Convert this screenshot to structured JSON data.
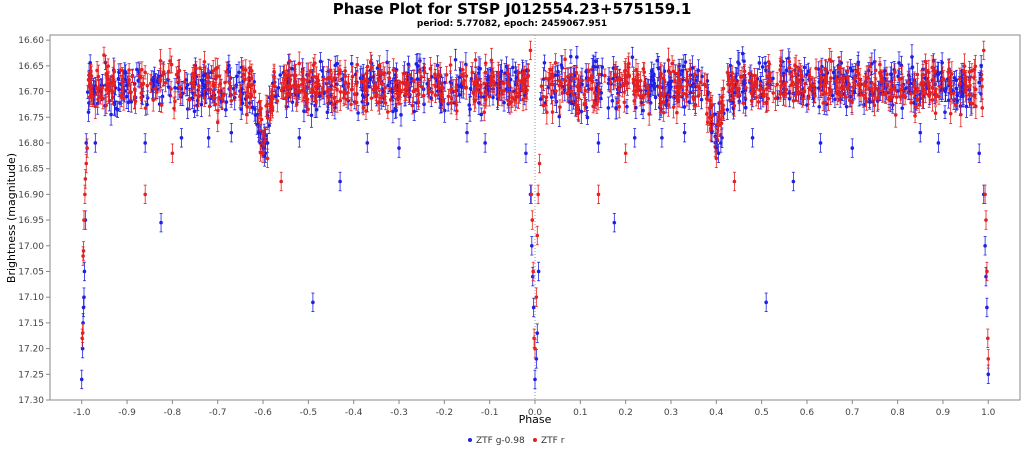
{
  "chart_data": {
    "type": "scatter",
    "title": "Phase Plot for STSP J012554.23+575159.1",
    "subtitle": "period: 5.77082, epoch: 2459067.951",
    "xlabel": "Phase",
    "ylabel": "Brightness (magnitude)",
    "xlim": [
      -1.07,
      1.07
    ],
    "ylim": [
      17.3,
      16.59
    ],
    "y_inverted": true,
    "grid": false,
    "legend_position": "bottom-center",
    "xticks": [
      "-1.0",
      "-0.9",
      "-0.8",
      "-0.7",
      "-0.6",
      "-0.5",
      "-0.4",
      "-0.3",
      "-0.2",
      "-0.1",
      "0.0",
      "0.1",
      "0.2",
      "0.3",
      "0.4",
      "0.5",
      "0.6",
      "0.7",
      "0.8",
      "0.9",
      "1.0"
    ],
    "yticks": [
      "16.60",
      "16.65",
      "16.70",
      "16.75",
      "16.80",
      "16.85",
      "16.90",
      "16.95",
      "17.00",
      "17.05",
      "17.10",
      "17.15",
      "17.20",
      "17.25",
      "17.30"
    ],
    "baseline_magnitude": 16.69,
    "series": [
      {
        "name": "ZTF g-0.98",
        "color": "#1f1fe6",
        "points": [
          {
            "x": -1.0,
            "y": 17.26
          },
          {
            "x": -0.998,
            "y": 17.2
          },
          {
            "x": -0.997,
            "y": 17.15
          },
          {
            "x": -0.996,
            "y": 17.12
          },
          {
            "x": -0.995,
            "y": 17.1
          },
          {
            "x": -0.994,
            "y": 17.05
          },
          {
            "x": -0.992,
            "y": 16.95
          },
          {
            "x": -0.99,
            "y": 16.8
          },
          {
            "x": -0.985,
            "y": 16.74
          },
          {
            "x": -0.97,
            "y": 16.8
          },
          {
            "x": -0.86,
            "y": 16.8
          },
          {
            "x": -0.825,
            "y": 16.955
          },
          {
            "x": -0.78,
            "y": 16.79
          },
          {
            "x": -0.72,
            "y": 16.79
          },
          {
            "x": -0.67,
            "y": 16.78
          },
          {
            "x": -0.61,
            "y": 16.78
          },
          {
            "x": -0.6,
            "y": 16.81
          },
          {
            "x": -0.595,
            "y": 16.82
          },
          {
            "x": -0.59,
            "y": 16.8
          },
          {
            "x": -0.52,
            "y": 16.79
          },
          {
            "x": -0.49,
            "y": 17.11
          },
          {
            "x": -0.43,
            "y": 16.875
          },
          {
            "x": -0.37,
            "y": 16.8
          },
          {
            "x": -0.3,
            "y": 16.81
          },
          {
            "x": -0.15,
            "y": 16.78
          },
          {
            "x": -0.11,
            "y": 16.8
          },
          {
            "x": -0.02,
            "y": 16.82
          },
          {
            "x": -0.01,
            "y": 16.9
          },
          {
            "x": -0.007,
            "y": 17.0
          },
          {
            "x": -0.005,
            "y": 17.06
          },
          {
            "x": -0.003,
            "y": 17.12
          },
          {
            "x": 0.0,
            "y": 17.26
          },
          {
            "x": 0.003,
            "y": 17.22
          },
          {
            "x": 0.005,
            "y": 17.17
          },
          {
            "x": 0.008,
            "y": 17.05
          },
          {
            "x": 0.14,
            "y": 16.8
          },
          {
            "x": 0.175,
            "y": 16.955
          },
          {
            "x": 0.22,
            "y": 16.79
          },
          {
            "x": 0.28,
            "y": 16.79
          },
          {
            "x": 0.33,
            "y": 16.78
          },
          {
            "x": 0.39,
            "y": 16.78
          },
          {
            "x": 0.4,
            "y": 16.81
          },
          {
            "x": 0.405,
            "y": 16.82
          },
          {
            "x": 0.41,
            "y": 16.8
          },
          {
            "x": 0.48,
            "y": 16.79
          },
          {
            "x": 0.51,
            "y": 17.11
          },
          {
            "x": 0.57,
            "y": 16.875
          },
          {
            "x": 0.63,
            "y": 16.8
          },
          {
            "x": 0.7,
            "y": 16.81
          },
          {
            "x": 0.85,
            "y": 16.78
          },
          {
            "x": 0.89,
            "y": 16.8
          },
          {
            "x": 0.98,
            "y": 16.82
          },
          {
            "x": 0.99,
            "y": 16.9
          },
          {
            "x": 0.993,
            "y": 17.0
          },
          {
            "x": 0.995,
            "y": 17.06
          },
          {
            "x": 0.997,
            "y": 17.12
          },
          {
            "x": 1.0,
            "y": 17.25
          }
        ]
      },
      {
        "name": "ZTF r",
        "color": "#e62020",
        "points": [
          {
            "x": -0.999,
            "y": 17.18
          },
          {
            "x": -0.998,
            "y": 17.17
          },
          {
            "x": -0.997,
            "y": 17.02
          },
          {
            "x": -0.996,
            "y": 17.01
          },
          {
            "x": -0.995,
            "y": 16.95
          },
          {
            "x": -0.993,
            "y": 16.9
          },
          {
            "x": -0.992,
            "y": 16.87
          },
          {
            "x": -0.99,
            "y": 16.84
          },
          {
            "x": -0.988,
            "y": 16.81
          },
          {
            "x": -0.86,
            "y": 16.9
          },
          {
            "x": -0.8,
            "y": 16.82
          },
          {
            "x": -0.7,
            "y": 16.76
          },
          {
            "x": -0.6,
            "y": 16.82
          },
          {
            "x": -0.59,
            "y": 16.83
          },
          {
            "x": -0.56,
            "y": 16.875
          },
          {
            "x": -0.01,
            "y": 16.62
          },
          {
            "x": -0.008,
            "y": 16.9
          },
          {
            "x": -0.006,
            "y": 16.95
          },
          {
            "x": -0.004,
            "y": 17.05
          },
          {
            "x": -0.002,
            "y": 17.18
          },
          {
            "x": 0.0,
            "y": 17.2
          },
          {
            "x": 0.003,
            "y": 17.1
          },
          {
            "x": 0.005,
            "y": 16.98
          },
          {
            "x": 0.007,
            "y": 16.9
          },
          {
            "x": 0.01,
            "y": 16.84
          },
          {
            "x": 0.14,
            "y": 16.9
          },
          {
            "x": 0.2,
            "y": 16.82
          },
          {
            "x": 0.4,
            "y": 16.83
          },
          {
            "x": 0.44,
            "y": 16.875
          },
          {
            "x": 0.99,
            "y": 16.62
          },
          {
            "x": 0.993,
            "y": 16.9
          },
          {
            "x": 0.995,
            "y": 16.95
          },
          {
            "x": 0.997,
            "y": 17.05
          },
          {
            "x": 0.999,
            "y": 17.18
          },
          {
            "x": 1.0,
            "y": 17.22
          }
        ]
      }
    ]
  }
}
